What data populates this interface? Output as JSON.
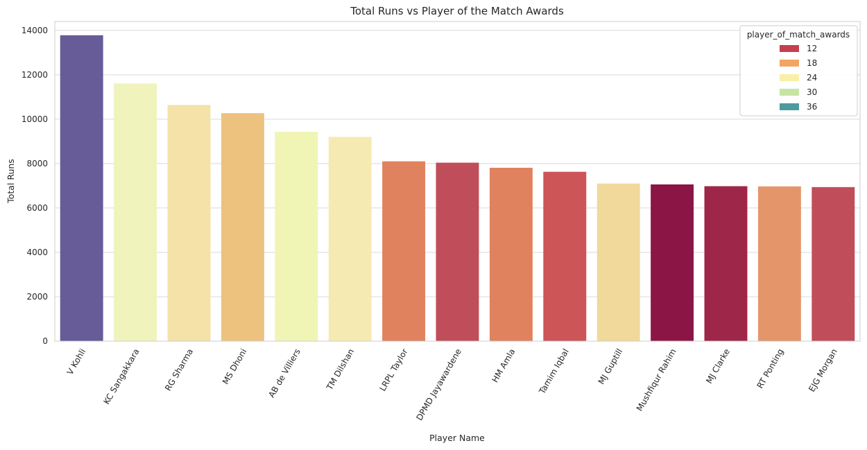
{
  "chart_data": {
    "type": "bar",
    "title": "Total Runs vs Player of the Match Awards",
    "xlabel": "Player Name",
    "ylabel": "Total Runs",
    "ylim": [
      0,
      14400
    ],
    "yticks": [
      0,
      2000,
      4000,
      6000,
      8000,
      10000,
      12000,
      14000
    ],
    "grid": true,
    "categories": [
      "V Kohli",
      "KC Sangakkara",
      "RG Sharma",
      "MS Dhoni",
      "AB de Villiers",
      "TM Dilshan",
      "LRPL Taylor",
      "DPMD Jayawardene",
      "HM Amla",
      "Tamim Iqbal",
      "MJ Guptill",
      "Mushfiqur Rahim",
      "MJ Clarke",
      "RT Ponting",
      "EJG Morgan"
    ],
    "values": [
      13780,
      11610,
      10640,
      10270,
      9430,
      9200,
      8100,
      8040,
      7810,
      7630,
      7100,
      7060,
      6980,
      6970,
      6940
    ],
    "bar_colors": [
      "#675b98",
      "#f0f3bb",
      "#f4e2a9",
      "#edc27f",
      "#f0f5b5",
      "#f5eab2",
      "#e0825d",
      "#c04e5a",
      "#e0825d",
      "#cc5558",
      "#f0d99a",
      "#8b1645",
      "#9e2648",
      "#e5956a",
      "#c04e5a"
    ],
    "legend": {
      "title": "player_of_match_awards",
      "placement": "top-right",
      "entries": [
        {
          "label": "12",
          "color": "#c4404f"
        },
        {
          "label": "18",
          "color": "#f2a463"
        },
        {
          "label": "24",
          "color": "#f9efa8"
        },
        {
          "label": "30",
          "color": "#c8e4a5"
        },
        {
          "label": "36",
          "color": "#4d9aa0"
        }
      ]
    }
  }
}
